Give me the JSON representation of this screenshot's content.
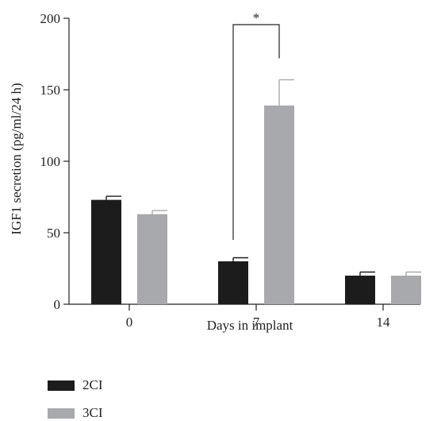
{
  "chart_data": {
    "type": "bar",
    "categories": [
      "0",
      "7",
      "14"
    ],
    "series": [
      {
        "name": "2CI",
        "color": "#1c1c1c",
        "values": [
          73,
          30,
          20
        ],
        "errors": [
          2.5,
          2.5,
          2.5
        ]
      },
      {
        "name": "3CI",
        "color": "#a7a9ac",
        "values": [
          63,
          139,
          20
        ],
        "errors": [
          2.5,
          18,
          2.5
        ]
      }
    ],
    "xlabel": "Days in implant",
    "ylabel": "IGF1 secretion (pg/ml/24 h)",
    "ylim": [
      0,
      200
    ],
    "yticks": [
      0,
      50,
      100,
      150,
      200
    ],
    "annotations": [
      {
        "text": "*",
        "category": "7",
        "compares": [
          "2CI",
          "3CI"
        ]
      }
    ],
    "legend": "bottom-left",
    "grid": false
  }
}
